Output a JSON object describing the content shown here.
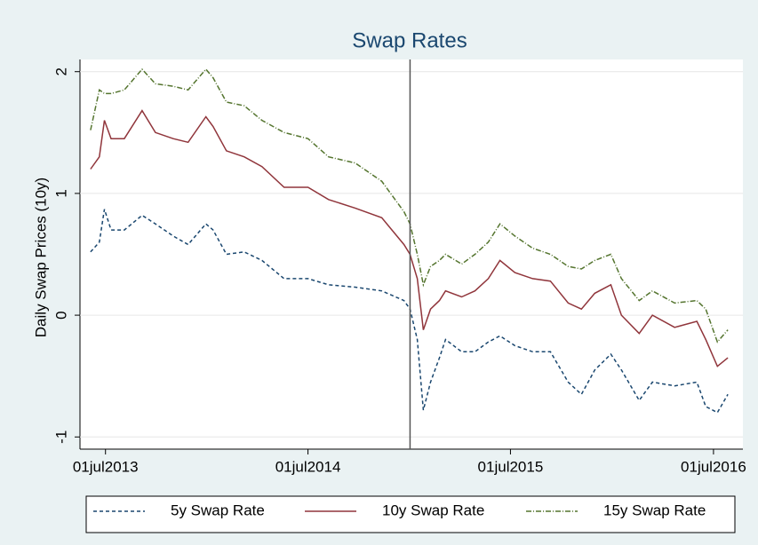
{
  "chart_data": {
    "type": "line",
    "title": "Swap Rates",
    "y_label": "Daily Swap Prices (10y)",
    "x": [
      "2013-06-04",
      "2013-06-20",
      "2013-06-29",
      "2013-07-11",
      "2013-08-04",
      "2013-09-05",
      "2013-09-29",
      "2013-10-31",
      "2013-11-27",
      "2013-12-29",
      "2014-01-11",
      "2014-02-04",
      "2014-03-08",
      "2014-04-09",
      "2014-05-19",
      "2014-07-01",
      "2014-08-07",
      "2014-09-24",
      "2014-11-11",
      "2014-12-21",
      "2015-01-01",
      "2015-01-14",
      "2015-01-25",
      "2015-02-07",
      "2015-02-23",
      "2015-03-06",
      "2015-04-04",
      "2015-04-28",
      "2015-05-22",
      "2015-06-12",
      "2015-07-09",
      "2015-08-10",
      "2015-09-11",
      "2015-10-13",
      "2015-11-06",
      "2015-11-30",
      "2015-12-29",
      "2016-01-17",
      "2016-02-18",
      "2016-03-13",
      "2016-04-22",
      "2016-06-01",
      "2016-06-17",
      "2016-07-08",
      "2016-07-27"
    ],
    "series": [
      {
        "name": "5y Swap Rate",
        "color": "#1a476f",
        "dash": "4,3",
        "values": [
          0.52,
          0.6,
          0.87,
          0.7,
          0.7,
          0.82,
          0.75,
          0.65,
          0.58,
          0.75,
          0.7,
          0.5,
          0.52,
          0.45,
          0.3,
          0.3,
          0.25,
          0.23,
          0.2,
          0.12,
          0.05,
          -0.2,
          -0.78,
          -0.55,
          -0.35,
          -0.2,
          -0.3,
          -0.3,
          -0.22,
          -0.17,
          -0.25,
          -0.3,
          -0.3,
          -0.55,
          -0.65,
          -0.45,
          -0.32,
          -0.45,
          -0.7,
          -0.55,
          -0.58,
          -0.55,
          -0.75,
          -0.8,
          -0.65
        ]
      },
      {
        "name": "10y Swap Rate",
        "color": "#90353b",
        "dash": "none",
        "values": [
          1.2,
          1.3,
          1.6,
          1.45,
          1.45,
          1.68,
          1.5,
          1.45,
          1.42,
          1.63,
          1.55,
          1.35,
          1.3,
          1.22,
          1.05,
          1.05,
          0.95,
          0.88,
          0.8,
          0.58,
          0.5,
          0.3,
          -0.12,
          0.05,
          0.12,
          0.2,
          0.15,
          0.2,
          0.3,
          0.45,
          0.35,
          0.3,
          0.28,
          0.1,
          0.05,
          0.18,
          0.25,
          0.0,
          -0.15,
          0.0,
          -0.1,
          -0.05,
          -0.2,
          -0.42,
          -0.35
        ]
      },
      {
        "name": "15y Swap Rate",
        "color": "#55752f",
        "dash": "6,2,1,2",
        "values": [
          1.52,
          1.85,
          1.82,
          1.82,
          1.85,
          2.02,
          1.9,
          1.88,
          1.85,
          2.02,
          1.95,
          1.75,
          1.72,
          1.6,
          1.5,
          1.45,
          1.3,
          1.25,
          1.1,
          0.85,
          0.75,
          0.5,
          0.25,
          0.4,
          0.45,
          0.5,
          0.42,
          0.5,
          0.6,
          0.75,
          0.65,
          0.55,
          0.5,
          0.4,
          0.38,
          0.45,
          0.5,
          0.3,
          0.12,
          0.2,
          0.1,
          0.12,
          0.05,
          -0.22,
          -0.12
        ]
      }
    ],
    "xlim": [
      "2013-05-16",
      "2016-08-23"
    ],
    "xticks": [
      {
        "value": "2013-07-01",
        "label": "01jul2013"
      },
      {
        "value": "2014-07-01",
        "label": "01jul2014"
      },
      {
        "value": "2015-07-01",
        "label": "01jul2015"
      },
      {
        "value": "2016-07-01",
        "label": "01jul2016"
      }
    ],
    "ylim": [
      -1.1,
      2.1
    ],
    "yticks": [
      -1,
      0,
      1,
      2
    ],
    "grid": true,
    "vline": "2015-01-01",
    "legend": "bottom"
  }
}
